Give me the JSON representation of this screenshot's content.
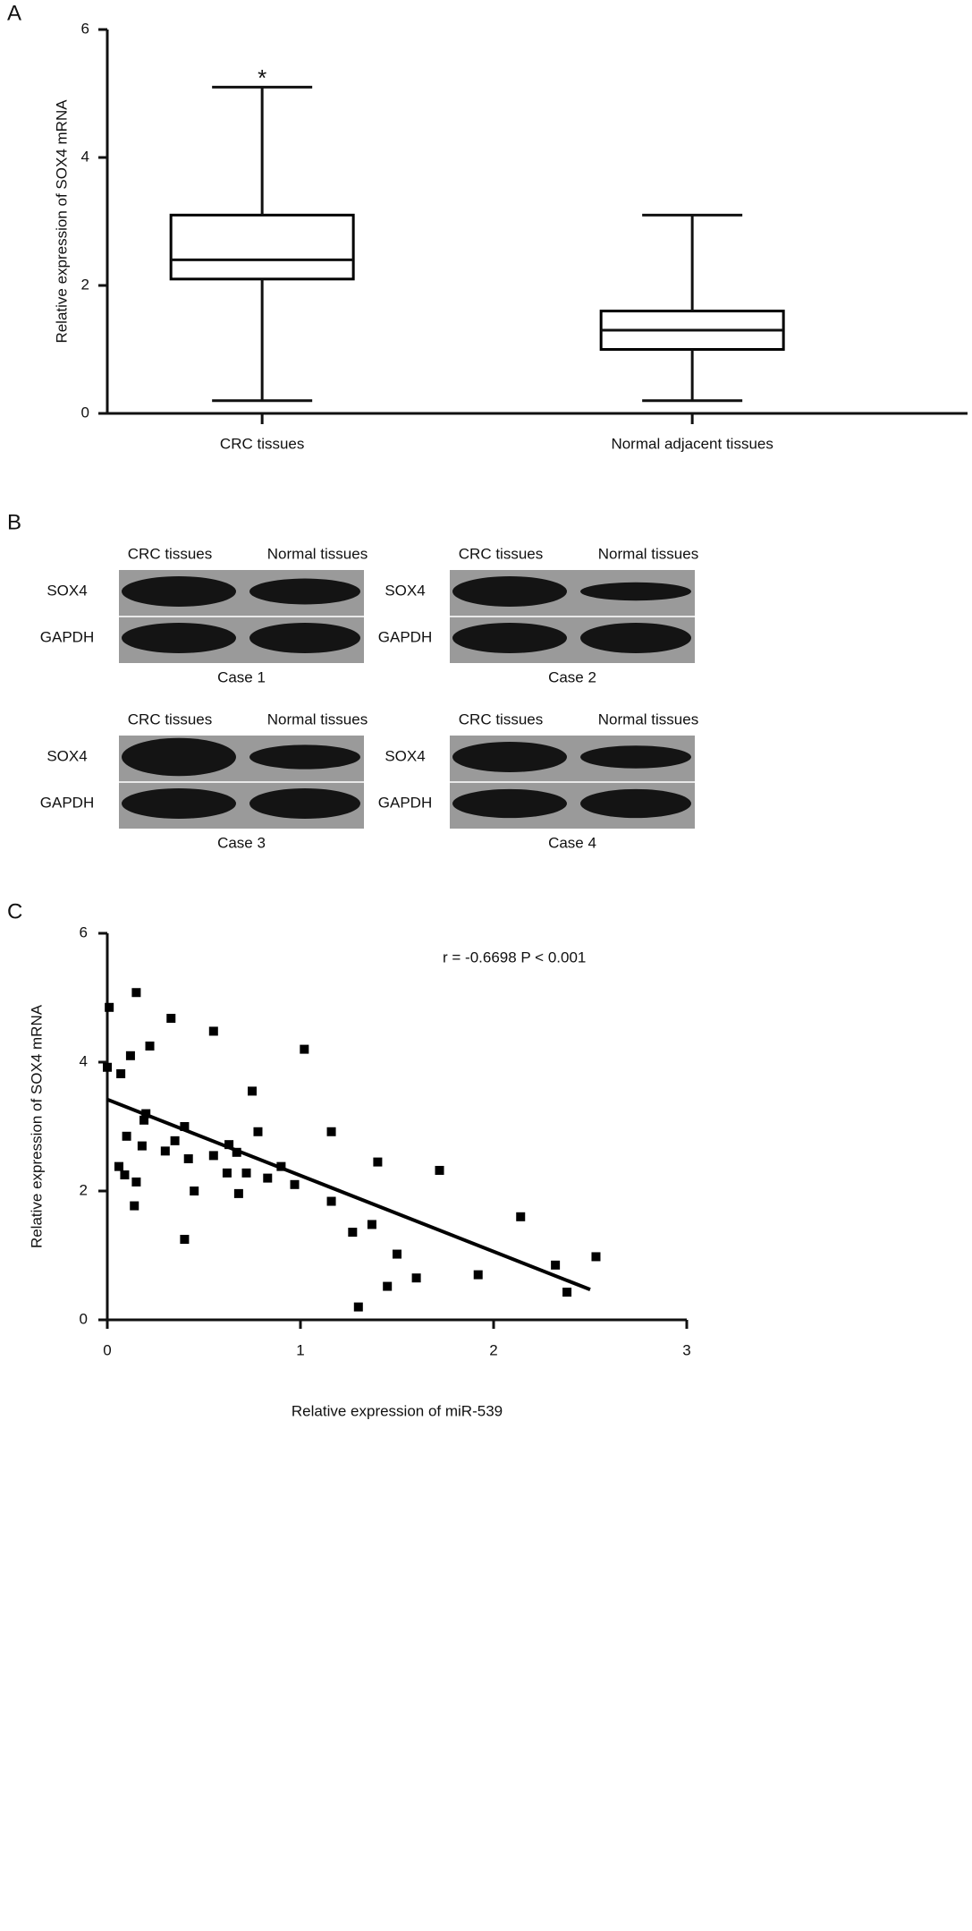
{
  "chart_data": [
    {
      "type": "box",
      "panel_label": "A",
      "ylabel": "Relative expression of SOX4 mRNA",
      "categories": [
        "CRC tissues",
        "Normal adjacent tissues"
      ],
      "boxes": [
        {
          "min": 0.2,
          "q1": 2.1,
          "median": 2.4,
          "q3": 3.1,
          "max": 5.1
        },
        {
          "min": 0.2,
          "q1": 1.0,
          "median": 1.3,
          "q3": 1.6,
          "max": 3.1
        }
      ],
      "annotation": "*",
      "ylim": [
        0,
        6
      ],
      "yticks": [
        0,
        2,
        4,
        6
      ],
      "color": "#000000"
    },
    {
      "type": "scatter",
      "panel_label": "C",
      "xlabel": "Relative expression of miR-539",
      "ylabel": "Relative expression of SOX4 mRNA",
      "annotation": "r = -0.6698 P < 0.001",
      "x": [
        0.01,
        0.15,
        0.33,
        0.55,
        0.22,
        0.12,
        0.0,
        0.07,
        1.02,
        0.75,
        0.2,
        0.19,
        0.1,
        0.18,
        0.4,
        0.35,
        0.3,
        0.42,
        0.55,
        0.63,
        0.67,
        0.78,
        0.72,
        0.62,
        0.06,
        0.09,
        0.15,
        0.14,
        0.45,
        0.68,
        0.83,
        0.9,
        0.97,
        1.16,
        1.16,
        1.4,
        1.72,
        0.4,
        1.27,
        1.37,
        1.5,
        1.45,
        1.3,
        1.6,
        1.92,
        2.14,
        2.32,
        2.38,
        2.53
      ],
      "y": [
        4.85,
        5.08,
        4.68,
        4.48,
        4.25,
        4.1,
        3.92,
        3.82,
        4.2,
        3.55,
        3.2,
        3.1,
        2.85,
        2.7,
        3.0,
        2.78,
        2.62,
        2.5,
        2.55,
        2.72,
        2.6,
        2.92,
        2.28,
        2.28,
        2.38,
        2.25,
        2.14,
        1.77,
        2.0,
        1.96,
        2.2,
        2.38,
        2.1,
        2.92,
        1.84,
        2.45,
        2.32,
        1.25,
        1.36,
        1.48,
        1.02,
        0.52,
        0.2,
        0.65,
        0.7,
        1.6,
        0.85,
        0.43,
        0.98
      ],
      "fit": {
        "x": [
          0,
          2.5
        ],
        "y": [
          3.42,
          0.47
        ]
      },
      "xlim": [
        0,
        3
      ],
      "ylim": [
        0,
        6
      ],
      "xticks": [
        0,
        1,
        2,
        3
      ],
      "yticks": [
        0,
        2,
        4,
        6
      ],
      "color": "#000000"
    }
  ],
  "western_blot": {
    "panel_label": "B",
    "cases": [
      {
        "title": "Case 1",
        "columns": [
          "CRC tissues",
          "Normal tissues"
        ],
        "rows": [
          "SOX4",
          "GAPDH"
        ]
      },
      {
        "title": "Case 2",
        "columns": [
          "CRC tissues",
          "Normal tissues"
        ],
        "rows": [
          "SOX4",
          "GAPDH"
        ]
      },
      {
        "title": "Case 3",
        "columns": [
          "CRC tissues",
          "Normal tissues"
        ],
        "rows": [
          "SOX4",
          "GAPDH"
        ]
      },
      {
        "title": "Case 4",
        "columns": [
          "CRC tissues",
          "Normal tissues"
        ],
        "rows": [
          "SOX4",
          "GAPDH"
        ]
      }
    ]
  }
}
